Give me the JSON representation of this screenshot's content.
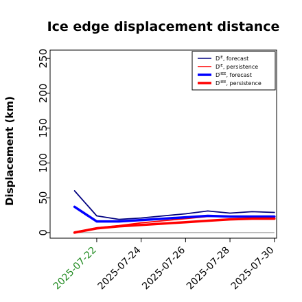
{
  "chart_data": {
    "type": "line",
    "title": "Ice edge displacement distance",
    "xlabel": "",
    "ylabel": "Displacement (km)",
    "x": [
      "2025-07-21",
      "2025-07-22",
      "2025-07-23",
      "2025-07-24",
      "2025-07-25",
      "2025-07-26",
      "2025-07-27",
      "2025-07-28",
      "2025-07-29",
      "2025-07-30"
    ],
    "xticks": [
      "2025-07-22",
      "2025-07-24",
      "2025-07-26",
      "2025-07-28",
      "2025-07-30"
    ],
    "highlight_tick": "2025-07-22",
    "yticks": [
      0,
      50,
      100,
      150,
      200,
      250
    ],
    "xlim": [
      "2025-07-20",
      "2025-07-30"
    ],
    "ylim": [
      -8,
      262
    ],
    "grid": false,
    "legend_position": "top-right",
    "baseline": 0,
    "series": [
      {
        "name": "D^IE, forecast",
        "name_base": "D",
        "name_sup": "IE",
        "name_rest": ", forecast",
        "color": "#000080",
        "linewidth": "thin",
        "values": [
          60,
          24,
          19,
          21,
          24,
          27,
          31,
          28,
          30,
          29
        ]
      },
      {
        "name": "D^IE, persistence",
        "name_base": "D",
        "name_sup": "IE",
        "name_rest": ", persistence",
        "color": "#ff0000",
        "linewidth": "thin",
        "values": [
          1,
          7,
          10,
          14,
          17,
          20,
          23,
          23,
          22,
          23
        ]
      },
      {
        "name": "D^IIEE, forecast",
        "name_base": "D",
        "name_sup": "IIEE",
        "name_rest": ", forecast",
        "color": "#0000ff",
        "linewidth": "thick",
        "values": [
          37,
          16,
          16,
          18,
          20,
          22,
          24,
          23,
          23,
          23
        ]
      },
      {
        "name": "D^IIEE, persistence",
        "name_base": "D",
        "name_sup": "IIEE",
        "name_rest": ", persistence",
        "color": "#ff0000",
        "linewidth": "thick",
        "values": [
          0,
          6,
          9,
          11,
          13,
          15,
          17,
          19,
          20,
          20
        ]
      }
    ]
  }
}
